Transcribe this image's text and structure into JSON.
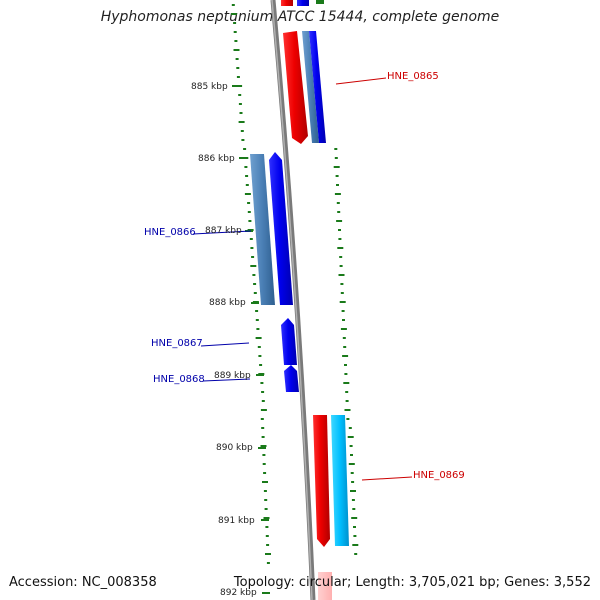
{
  "title": "Hyphomonas neptunium ATCC 15444, complete genome",
  "accession": "Accession: NC_008358",
  "summary": "Topology: circular; Length: 3,705,021 bp; Genes: 3,552",
  "ticks": [
    {
      "label": "885 kbp"
    },
    {
      "label": "886 kbp"
    },
    {
      "label": "887 kbp"
    },
    {
      "label": "888 kbp"
    },
    {
      "label": "889 kbp"
    },
    {
      "label": "890 kbp"
    },
    {
      "label": "891 kbp"
    },
    {
      "label": "892 kbp"
    }
  ],
  "genes": [
    {
      "name": "HNE_0865",
      "strand": "reverse",
      "color": "#cc0000"
    },
    {
      "name": "HNE_0866",
      "strand": "forward",
      "color": "#0000aa"
    },
    {
      "name": "HNE_0867",
      "strand": "forward",
      "color": "#0000aa"
    },
    {
      "name": "HNE_0868",
      "strand": "forward",
      "color": "#0000aa"
    },
    {
      "name": "HNE_0869",
      "strand": "reverse",
      "color": "#cc0000"
    }
  ],
  "colors": {
    "backbone": "#808080",
    "forward_cds": "#0000ee",
    "forward_gene": "#4a7fb5",
    "reverse_cds": "#ee0000",
    "reverse_gene": "#00bfff",
    "gc_skew": "#1a7a1a"
  }
}
